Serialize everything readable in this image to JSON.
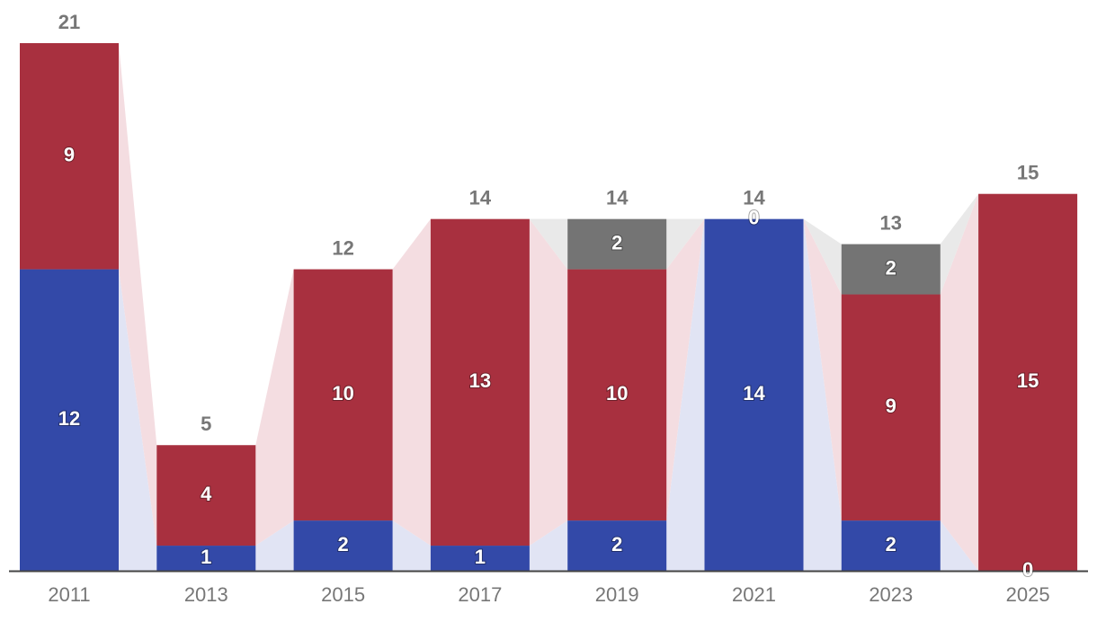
{
  "chart_data": {
    "type": "bar",
    "stacked": true,
    "title": "",
    "xlabel": "",
    "ylabel": "",
    "ylim": [
      0,
      21
    ],
    "grid": false,
    "legend": "none",
    "categories": [
      "2011",
      "2013",
      "2015",
      "2017",
      "2019",
      "2021",
      "2023",
      "2025"
    ],
    "series": [
      {
        "name": "blue",
        "color": "#3349a8",
        "values": [
          12,
          1,
          2,
          1,
          2,
          14,
          2,
          0
        ]
      },
      {
        "name": "red",
        "color": "#a8303f",
        "values": [
          9,
          4,
          10,
          13,
          10,
          0,
          9,
          15
        ]
      },
      {
        "name": "gray",
        "color": "#747474",
        "values": [
          0,
          0,
          0,
          0,
          2,
          0,
          2,
          0
        ]
      }
    ],
    "totals": [
      21,
      5,
      12,
      14,
      14,
      14,
      13,
      15
    ],
    "connector_colors": {
      "blue": "#e1e4f4",
      "red": "#f4dde1",
      "gray": "#e9e9e9"
    },
    "axis_color": "#444444"
  }
}
